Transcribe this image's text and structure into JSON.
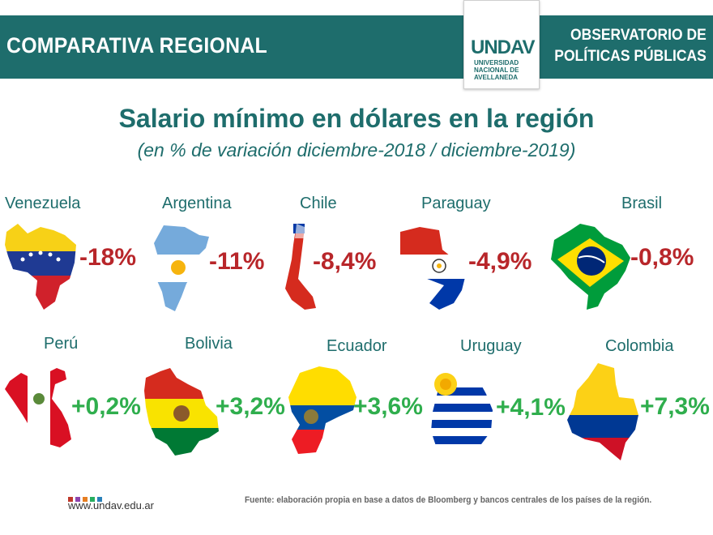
{
  "header": {
    "section": "COMPARATIVA REGIONAL",
    "logo_mark": "UNDAV",
    "logo_lines": [
      "UNIVERSIDAD",
      "NACIONAL DE",
      "AVELLANEDA"
    ],
    "observatory_line1": "OBSERVATORIO DE",
    "observatory_line2": "POLÍTICAS PÚBLICAS"
  },
  "title": "Salario mínimo en dólares en la región",
  "subtitle": "(en % de variación diciembre-2018 / diciembre-2019)",
  "countries": [
    {
      "name": "Venezuela",
      "value": "-18%",
      "sign": "negative"
    },
    {
      "name": "Argentina",
      "value": "-11%",
      "sign": "negative"
    },
    {
      "name": "Chile",
      "value": "-8,4%",
      "sign": "negative"
    },
    {
      "name": "Paraguay",
      "value": "-4,9%",
      "sign": "negative"
    },
    {
      "name": "Brasil",
      "value": "-0,8%",
      "sign": "negative"
    },
    {
      "name": "Perú",
      "value": "+0,2%",
      "sign": "positive"
    },
    {
      "name": "Bolivia",
      "value": "+3,2%",
      "sign": "positive"
    },
    {
      "name": "Ecuador",
      "value": "+3,6%",
      "sign": "positive"
    },
    {
      "name": "Uruguay",
      "value": "+4,1%",
      "sign": "positive"
    },
    {
      "name": "Colombia",
      "value": "+7,3%",
      "sign": "positive"
    }
  ],
  "colors": {
    "brand": "#1e6d6c",
    "negative": "#b8262a",
    "positive": "#2fae4d"
  },
  "footer": {
    "url": "www.undav.edu.ar",
    "source": "Fuente: elaboración propia en base a datos de Bloomberg y bancos centrales de los países de la región.",
    "dot_colors": [
      "#c0392b",
      "#8e44ad",
      "#e67e22",
      "#27ae60",
      "#2980b9"
    ]
  }
}
